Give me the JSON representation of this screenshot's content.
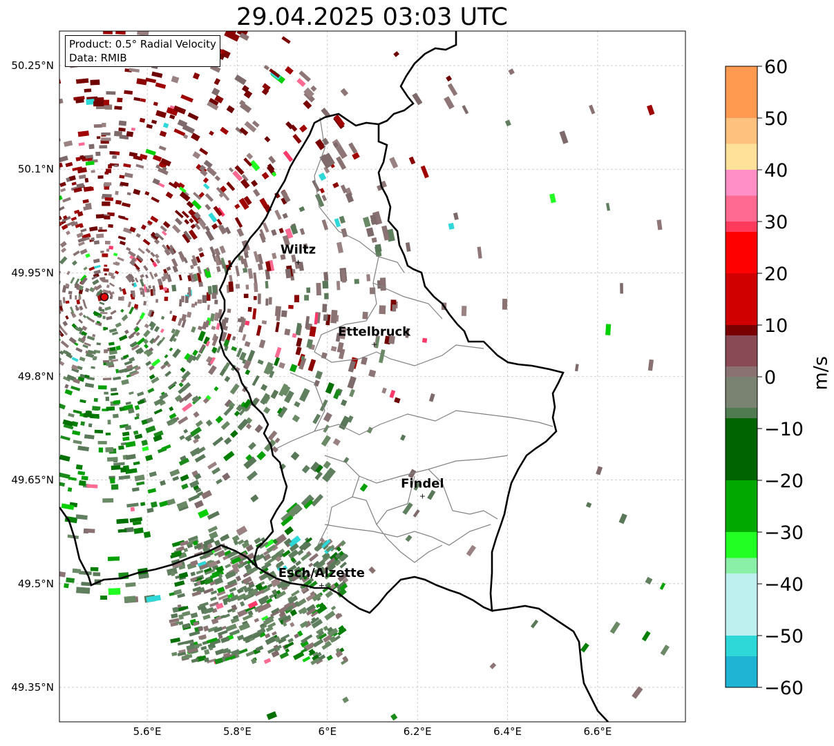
{
  "title": "29.04.2025 03:03 UTC",
  "info": {
    "product": "Product: 0.5° Radial Velocity",
    "data": "Data: RMIB"
  },
  "lat_labels": [
    "50.25°N",
    "50.1°N",
    "49.95°N",
    "49.8°N",
    "49.65°N",
    "49.5°N",
    "49.35°N"
  ],
  "lon_labels": [
    "5.6°E",
    "5.8°E",
    "6°E",
    "6.2°E",
    "6.4°E",
    "6.6°E"
  ],
  "cities": [
    {
      "name": "Wiltz",
      "lon": 5.935,
      "lat": 49.966
    },
    {
      "name": "Ettelbruck",
      "lon": 6.104,
      "lat": 49.847
    },
    {
      "name": "Findel",
      "lon": 6.211,
      "lat": 49.627
    },
    {
      "name": "Esch/Alzette",
      "lon": 5.987,
      "lat": 49.498
    }
  ],
  "radar_site": {
    "lon": 5.505,
    "lat": 49.915
  },
  "extent": {
    "lon_min": 5.405,
    "lon_max": 6.795,
    "lat_min": 49.3,
    "lat_max": 50.3
  },
  "colorbar": {
    "label": "m/s",
    "ticks": [
      "60",
      "50",
      "40",
      "30",
      "20",
      "10",
      "0",
      "−10",
      "−20",
      "−30",
      "−40",
      "−50",
      "−60"
    ],
    "range": [
      -60,
      60
    ],
    "stops": [
      {
        "v": 60,
        "c": "#ff9a50"
      },
      {
        "v": 50,
        "c": "#ffc27e"
      },
      {
        "v": 45,
        "c": "#ffe19a"
      },
      {
        "v": 40,
        "c": "#ff8fc6"
      },
      {
        "v": 35,
        "c": "#ff6a92"
      },
      {
        "v": 30,
        "c": "#ff3a5a"
      },
      {
        "v": 28,
        "c": "#ff0000"
      },
      {
        "v": 20,
        "c": "#d00000"
      },
      {
        "v": 10,
        "c": "#7a0000"
      },
      {
        "v": 8,
        "c": "#8a4a55"
      },
      {
        "v": 2,
        "c": "#8a7272"
      },
      {
        "v": 0,
        "c": "#7a8272"
      },
      {
        "v": -6,
        "c": "#507a50"
      },
      {
        "v": -8,
        "c": "#006400"
      },
      {
        "v": -20,
        "c": "#00a800"
      },
      {
        "v": -30,
        "c": "#22ff22"
      },
      {
        "v": -35,
        "c": "#8af0a8"
      },
      {
        "v": -38,
        "c": "#bff0f0"
      },
      {
        "v": -50,
        "c": "#2ed8d8"
      },
      {
        "v": -54,
        "c": "#20b4d4"
      },
      {
        "v": -60,
        "c": "#1e7fc8"
      }
    ]
  },
  "colors": {
    "outbound_strong": "#7a0000",
    "near_zero_pos": "#8a7272",
    "near_zero_neg": "#5f7f5f",
    "inbound": "#007f00",
    "border": "#000000",
    "canton_border": "#808080"
  }
}
